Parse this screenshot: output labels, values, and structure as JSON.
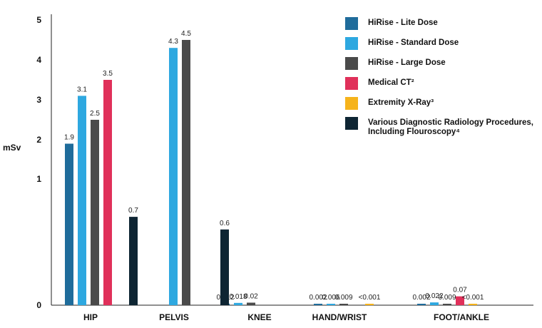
{
  "chart_data": {
    "type": "bar",
    "ylabel": "mSv",
    "y_ticks": [
      "0",
      "1",
      "2",
      "3",
      "4",
      "5"
    ],
    "categories": [
      "HIP",
      "PELVIS",
      "KNEE",
      "HAND/WRIST",
      "FOOT/ANKLE"
    ],
    "series": [
      {
        "name": "HiRise - Lite Dose",
        "color": "#1f6c9b",
        "values": [
          1.9,
          null,
          0.012,
          0.002,
          0.002
        ],
        "labels": [
          "1.9",
          "",
          "0.012",
          "0.002",
          "0.002"
        ]
      },
      {
        "name": "HiRise - Standard Dose",
        "color": "#2ea8e0",
        "values": [
          3.1,
          4.3,
          0.018,
          0.006,
          0.022
        ],
        "labels": [
          "3.1",
          "4.3",
          "0.018",
          "0.006",
          "0.022"
        ]
      },
      {
        "name": "HiRise - Large Dose",
        "color": "#4a4a4a",
        "values": [
          2.5,
          4.5,
          0.02,
          0.009,
          0.009
        ],
        "labels": [
          "2.5",
          "4.5",
          "0.02",
          "0.009",
          "0.009"
        ]
      },
      {
        "name": "Medical CT²",
        "color": "#e0305a",
        "values": [
          3.5,
          null,
          null,
          null,
          0.07
        ],
        "labels": [
          "3.5",
          "",
          "",
          "",
          "0.07"
        ]
      },
      {
        "name": "Extremity X-Ray³",
        "color": "#f6b31b",
        "values": [
          null,
          null,
          null,
          0.001,
          0.001
        ],
        "labels": [
          "",
          "",
          "",
          "<0.001",
          "<0.001"
        ]
      },
      {
        "name": "Various Diagnostic Radiology Procedures, Including Flouroscopy⁴",
        "color": "#0e2533",
        "values": [
          0.7,
          0.6,
          null,
          null,
          null
        ],
        "labels": [
          "0.7",
          "0.6",
          "",
          "",
          ""
        ]
      }
    ]
  }
}
